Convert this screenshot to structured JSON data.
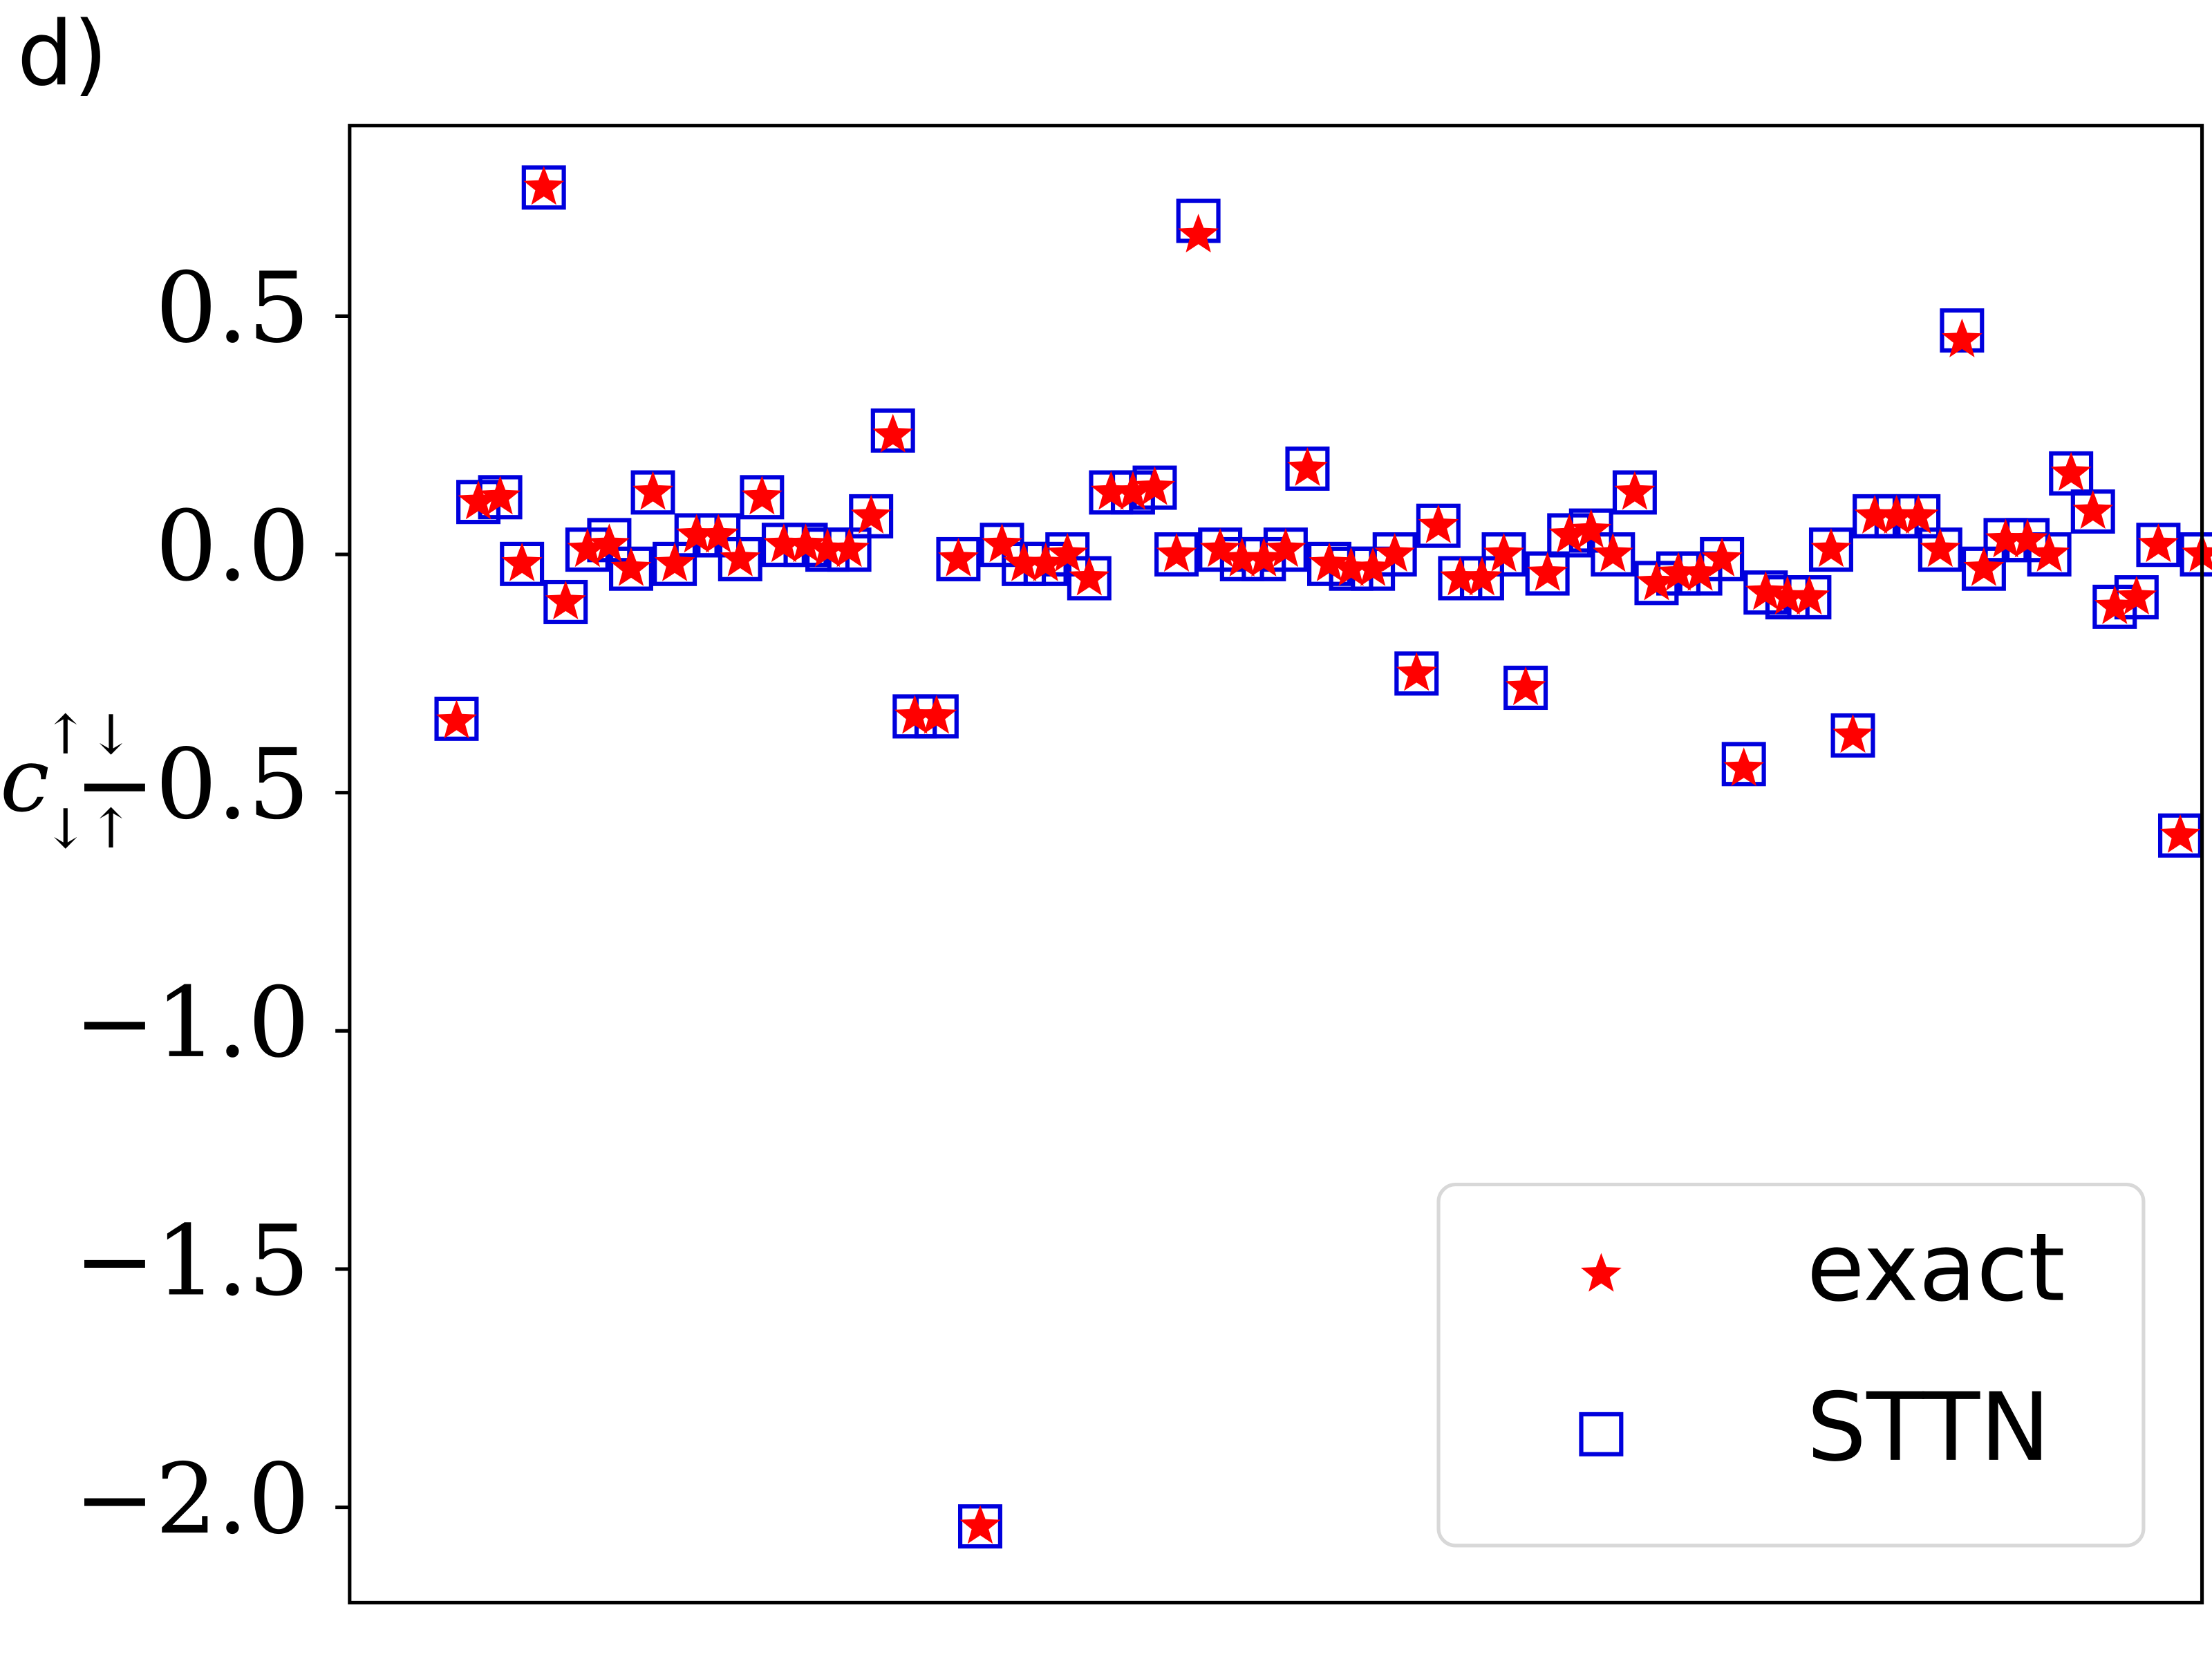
{
  "chart_data": {
    "type": "scatter",
    "panel_label": "d)",
    "ylabel": "c",
    "ylabel_superscript": "↑↓",
    "ylabel_subscript": "↓↑",
    "x": [
      0,
      1,
      2,
      3,
      4,
      5,
      6,
      7,
      8,
      9,
      10,
      11,
      12,
      13,
      14,
      15,
      16,
      17,
      18,
      19,
      20,
      21,
      22,
      23,
      24,
      25,
      26,
      27,
      28,
      29,
      30,
      31,
      32,
      33,
      34,
      35,
      36,
      37,
      38,
      39,
      40,
      41,
      42,
      43,
      44,
      45,
      46,
      47,
      48,
      49,
      50,
      51,
      52,
      53,
      54,
      55,
      56,
      57,
      58,
      59,
      60,
      61,
      62,
      63,
      64,
      65,
      66,
      67,
      68,
      69,
      70,
      71,
      72,
      73,
      74,
      75,
      76,
      77,
      78,
      79,
      80
    ],
    "series": [
      {
        "name": "exact",
        "color": "#ff0000",
        "marker": "star",
        "values": [
          -0.35,
          0.11,
          0.12,
          -0.02,
          0.77,
          -0.1,
          0.01,
          0.02,
          -0.03,
          0.13,
          -0.02,
          0.04,
          0.04,
          -0.01,
          0.12,
          0.02,
          0.02,
          0.01,
          0.01,
          0.08,
          0.25,
          -0.34,
          -0.34,
          -0.01,
          -2.04,
          0.02,
          -0.02,
          -0.02,
          0.0,
          -0.05,
          0.13,
          0.13,
          0.14,
          0.0,
          0.67,
          0.01,
          -0.01,
          -0.01,
          0.01,
          0.18,
          -0.02,
          -0.03,
          -0.03,
          0.0,
          -0.25,
          0.06,
          -0.05,
          -0.05,
          0.0,
          -0.28,
          -0.04,
          0.04,
          0.05,
          0.0,
          0.13,
          -0.06,
          -0.04,
          -0.04,
          -0.01,
          -0.45,
          -0.08,
          -0.09,
          -0.09,
          0.01,
          -0.38,
          0.08,
          0.08,
          0.08,
          0.01,
          0.45,
          -0.03,
          0.03,
          0.03,
          0.0,
          0.17,
          0.09,
          -0.11,
          -0.09,
          0.02,
          -0.59,
          0.0
        ]
      },
      {
        "name": "STTN",
        "color": "#0000dd",
        "marker": "square",
        "values": [
          -0.345,
          0.11,
          0.12,
          -0.02,
          0.77,
          -0.1,
          0.01,
          0.03,
          -0.03,
          0.13,
          -0.02,
          0.04,
          0.04,
          -0.01,
          0.12,
          0.02,
          0.02,
          0.01,
          0.01,
          0.08,
          0.26,
          -0.34,
          -0.34,
          -0.01,
          -2.04,
          0.02,
          -0.02,
          -0.02,
          0.0,
          -0.05,
          0.13,
          0.13,
          0.14,
          0.0,
          0.7,
          0.01,
          -0.01,
          -0.01,
          0.01,
          0.18,
          -0.02,
          -0.03,
          -0.03,
          0.0,
          -0.25,
          0.06,
          -0.05,
          -0.05,
          0.0,
          -0.28,
          -0.04,
          0.04,
          0.05,
          0.0,
          0.13,
          -0.06,
          -0.04,
          -0.04,
          -0.01,
          -0.44,
          -0.08,
          -0.09,
          -0.09,
          0.01,
          -0.38,
          0.08,
          0.08,
          0.08,
          0.01,
          0.47,
          -0.03,
          0.03,
          0.03,
          0.0,
          0.17,
          0.09,
          -0.11,
          -0.09,
          0.02,
          -0.59,
          0.0
        ]
      }
    ],
    "xlim": [
      -4.9,
      80
    ],
    "ylim": [
      -2.2,
      0.9
    ],
    "yticks": [
      {
        "value": -2.0,
        "label": "−2.0"
      },
      {
        "value": -1.5,
        "label": "−1.5"
      },
      {
        "value": -1.0,
        "label": "−1.0"
      },
      {
        "value": -0.5,
        "label": "−0.5"
      },
      {
        "value": 0,
        "label": "0.0"
      },
      0.5
    ],
    "legend": "lower right",
    "grid": false
  }
}
